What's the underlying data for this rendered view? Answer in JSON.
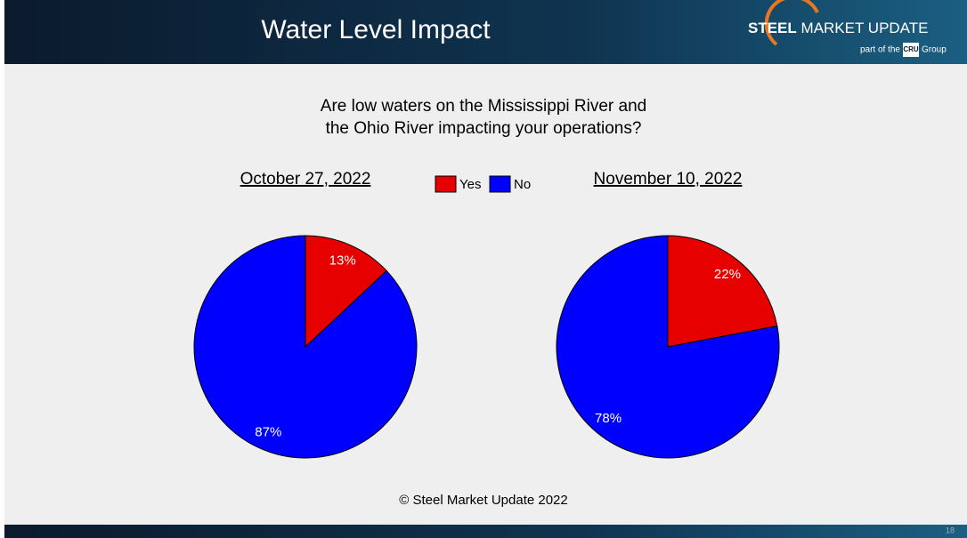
{
  "header": {
    "title": "Water Level Impact",
    "brand_bold": "STEEL",
    "brand_rest": "MARKET UPDATE",
    "tagline_pre": "part of the",
    "tagline_logo": "CRU",
    "tagline_post": "Group"
  },
  "question": [
    "Are low waters on the Mississippi River and",
    "the Ohio River impacting your operations?"
  ],
  "chart_data": [
    {
      "type": "pie",
      "title": "October 27, 2022",
      "categories": [
        "Yes",
        "No"
      ],
      "values": [
        13,
        87
      ],
      "value_labels": [
        "13%",
        "87%"
      ],
      "colors": [
        "#e60000",
        "#0000ff"
      ]
    },
    {
      "type": "pie",
      "title": "November 10, 2022",
      "categories": [
        "Yes",
        "No"
      ],
      "values": [
        22,
        78
      ],
      "value_labels": [
        "22%",
        "78%"
      ],
      "colors": [
        "#e60000",
        "#0000ff"
      ]
    }
  ],
  "footer": {
    "copyright": "© Steel Market Update 2022",
    "page": "18"
  }
}
